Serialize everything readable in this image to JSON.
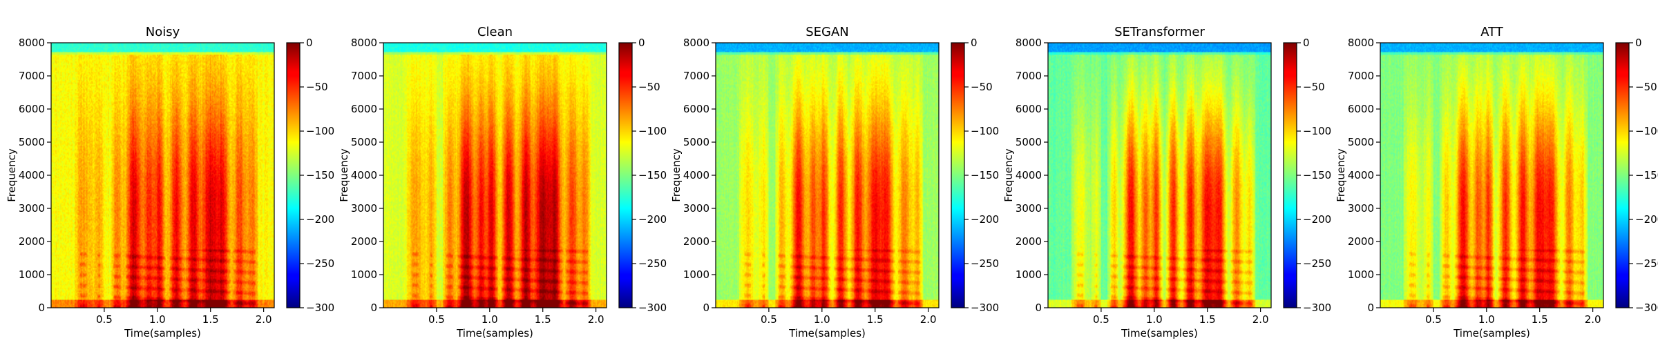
{
  "chart_data": {
    "type": "heatmap",
    "colormap": "jet",
    "panels": [
      {
        "title": "Noisy",
        "profile": "noisy"
      },
      {
        "title": "Clean",
        "profile": "clean"
      },
      {
        "title": "SEGAN",
        "profile": "segan"
      },
      {
        "title": "SETransformer",
        "profile": "setransformer"
      },
      {
        "title": "ATT",
        "profile": "att"
      }
    ],
    "xlabel": "Time(samples)",
    "ylabel": "Frequency",
    "xlim": [
      0,
      2.1
    ],
    "ylim": [
      0,
      8000
    ],
    "x_ticks": [
      0.5,
      1.0,
      1.5,
      2.0
    ],
    "x_tick_labels": [
      "0.5",
      "1.0",
      "1.5",
      "2.0"
    ],
    "y_ticks": [
      0,
      1000,
      2000,
      3000,
      4000,
      5000,
      6000,
      7000,
      8000
    ],
    "y_tick_labels": [
      "0",
      "1000",
      "2000",
      "3000",
      "4000",
      "5000",
      "6000",
      "7000",
      "8000"
    ],
    "colorbar": {
      "range": [
        -300,
        0
      ],
      "ticks": [
        0,
        -50,
        -100,
        -150,
        -200,
        -250,
        -300
      ],
      "tick_labels": [
        "0",
        "−50",
        "−100",
        "−150",
        "−200",
        "−250",
        "−300"
      ]
    },
    "grid": false,
    "legend": "none"
  }
}
